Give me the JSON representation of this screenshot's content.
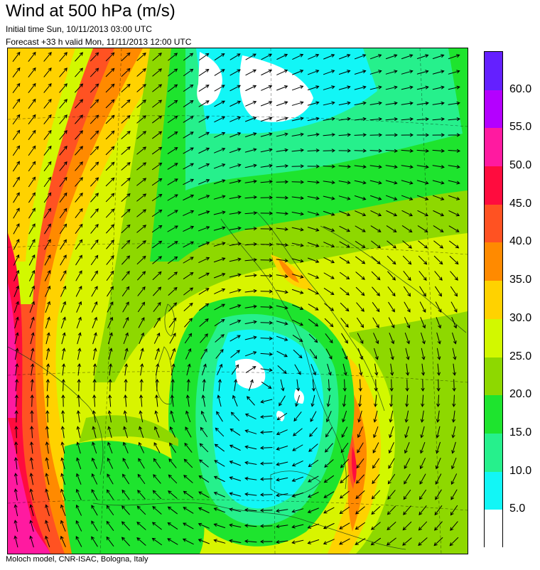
{
  "title": "Wind at 500 hPa (m/s)",
  "initial_time": "Initial time  Sun, 10/11/2013 03:00 UTC",
  "forecast_valid": "Forecast +33 h valid  Mon, 11/11/2013 12:00 UTC",
  "credit": "Moloch model, CNR-ISAC, Bologna, Italy",
  "legend": {
    "labels": [
      "60.0",
      "55.0",
      "50.0",
      "45.0",
      "40.0",
      "35.0",
      "30.0",
      "25.0",
      "20.0",
      "15.0",
      "10.0",
      "5.0"
    ],
    "colors": [
      "#6420ff",
      "#b400ff",
      "#ff1aa0",
      "#ff0c3e",
      "#ff5222",
      "#ff8a00",
      "#ffd200",
      "#d2f800",
      "#8ed800",
      "#1ee42e",
      "#26f08c",
      "#12f6f6",
      "#ffffff"
    ]
  },
  "map": {
    "colors": {
      "calm": "#ffffff",
      "c10": "#12f6f6",
      "c15": "#26f08c",
      "c20": "#1ee42e",
      "c25": "#8ed800",
      "c30": "#d2f800",
      "c35": "#ffd200",
      "c40": "#ff8a00",
      "c45": "#ff5222",
      "c50": "#ff0c3e",
      "c55": "#ff1aa0"
    }
  }
}
